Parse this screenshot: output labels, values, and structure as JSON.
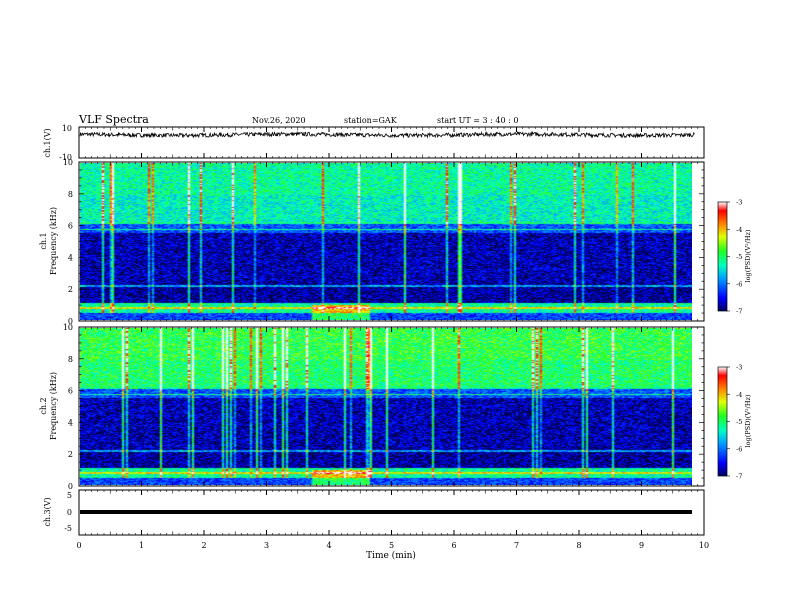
{
  "header": {
    "title": "VLF Spectra",
    "date": "Nov.26, 2020",
    "station": "station=GAK",
    "start_ut": "start  UT =   3 : 40 : 0"
  },
  "chart_data": [
    {
      "type": "line",
      "panel": "ch1-waveform",
      "ylabel": "ch.1(V)",
      "ylim": [
        -10,
        10
      ],
      "y_tick_labels": [
        "10",
        "-10"
      ],
      "series": [
        {
          "values_description_omitted": true,
          "level": 5.0
        }
      ],
      "color": "#000000"
    },
    {
      "type": "heatmap",
      "panel": "ch1-spectrogram",
      "ylabel_line1": "ch.1",
      "ylabel_line2": "Frequency (kHz)",
      "ylim": [
        0,
        10
      ],
      "y_tick_labels": [
        "0",
        "2",
        "4",
        "6",
        "8",
        "10"
      ],
      "colorbar": {
        "label": "log(PSD)(V²/Hz)",
        "range": [
          -7,
          -3
        ],
        "tick_labels": [
          "-3",
          "-4",
          "-5",
          "-6",
          "-7"
        ],
        "colors": [
          "#000080",
          "#0000ff",
          "#00c0ff",
          "#00ff80",
          "#40ff00",
          "#ffff00",
          "#ff8000",
          "#ff0000",
          "#ffffff"
        ]
      }
    },
    {
      "type": "heatmap",
      "panel": "ch2-spectrogram",
      "ylabel_line1": "ch.2",
      "ylabel_line2": "Frequency (kHz)",
      "ylim": [
        0,
        10
      ],
      "y_tick_labels": [
        "0",
        "2",
        "4",
        "6",
        "8",
        "10"
      ],
      "colorbar": {
        "label": "log(PSD)(V²/Hz)",
        "range": [
          -7,
          -3
        ],
        "tick_labels": [
          "-3",
          "-4",
          "-5",
          "-6",
          "-7"
        ]
      }
    },
    {
      "type": "line",
      "panel": "ch3-waveform",
      "ylabel": "ch.3(V)",
      "ylim": [
        -5,
        5
      ],
      "y_tick_labels": [
        "5",
        "0",
        "-5"
      ],
      "series": [
        {
          "constant": -1.0
        }
      ]
    }
  ],
  "x_axis": {
    "label": "Time  (min)",
    "range": [
      0,
      10
    ],
    "tick_labels": [
      "0",
      "1",
      "2",
      "3",
      "4",
      "5",
      "6",
      "7",
      "8",
      "9",
      "10"
    ],
    "data_end_min": 9.85
  }
}
